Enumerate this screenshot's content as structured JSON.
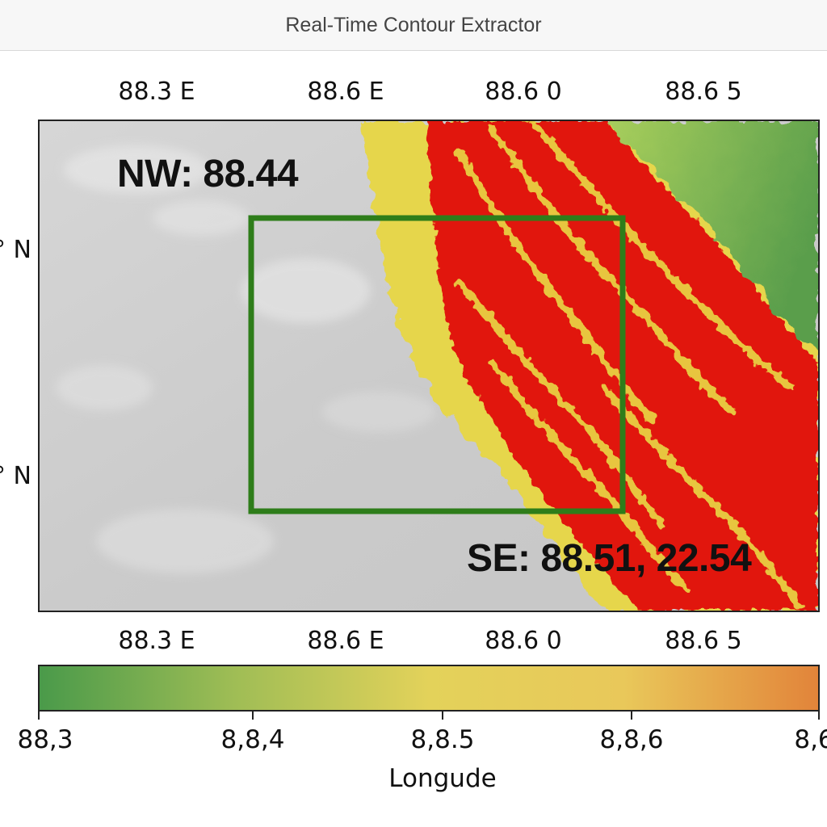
{
  "window": {
    "title": "Real-Time Contour Extractor"
  },
  "map": {
    "top_ticks": [
      "88.3 E",
      "88.6 E",
      "88.6 0",
      "88.6 5"
    ],
    "bottom_ticks": [
      "88.3 E",
      "88.6 E",
      "88.6 0",
      "88.6 5"
    ],
    "left_ticks": [
      "° N",
      "° N"
    ],
    "nw_label": "NW: 88.44",
    "se_label": "SE: 88.51, 22.54",
    "selection_color": "#2e7d1a",
    "terrain_colors": {
      "lowland": "#cfcfcf",
      "slope": "#e8d84a",
      "ridge": "#e01b12",
      "highland": "#5ea34a"
    }
  },
  "colorbar": {
    "ticks": [
      "88,3",
      "8,8,4",
      "8,8.5",
      "8,8,6",
      "8,6"
    ],
    "title": "Longude",
    "gradient": [
      "#4a9a4a",
      "#9fbd55",
      "#e3d25a",
      "#e9c85a",
      "#e2843a"
    ]
  }
}
